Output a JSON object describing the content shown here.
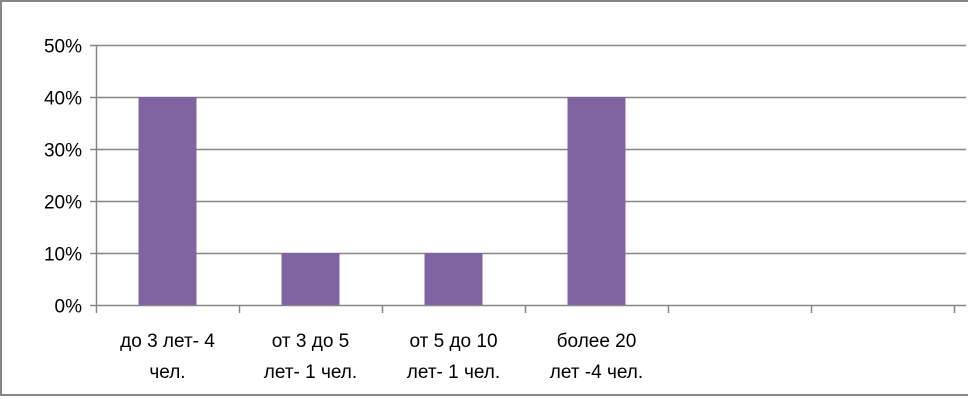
{
  "chart_data": {
    "type": "bar",
    "title": "",
    "xlabel": "",
    "ylabel": "",
    "categories": [
      [
        "до 3 лет- 4",
        "чел."
      ],
      [
        "от 3 до 5",
        "лет- 1 чел."
      ],
      [
        "от 5 до 10",
        "лет- 1 чел."
      ],
      [
        "более 20",
        "лет -4 чел."
      ],
      [
        "",
        ""
      ],
      [
        "",
        ""
      ]
    ],
    "values": [
      0.4,
      0.1,
      0.1,
      0.4,
      null,
      null
    ],
    "ylim": [
      0,
      0.5
    ],
    "yticks": [
      {
        "value": 0.0,
        "label": "0%"
      },
      {
        "value": 0.1,
        "label": "10%"
      },
      {
        "value": 0.2,
        "label": "20%"
      },
      {
        "value": 0.3,
        "label": "30%"
      },
      {
        "value": 0.4,
        "label": "40%"
      },
      {
        "value": 0.5,
        "label": "50%"
      }
    ],
    "grid": true,
    "legend": "none",
    "colors": {
      "bar": "#8064A2",
      "grid": "#868686",
      "axis": "#868686",
      "border": "#868686"
    }
  }
}
